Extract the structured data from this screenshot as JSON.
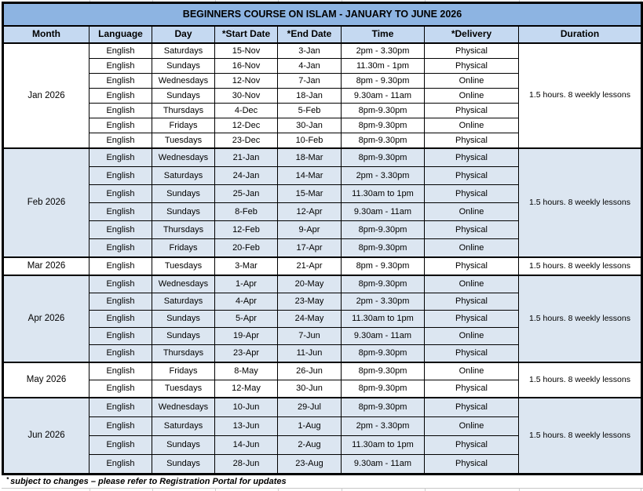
{
  "title": "BEGINNERS COURSE ON ISLAM - JANUARY TO JUNE 2026",
  "columns": [
    "Month",
    "Language",
    "Day",
    "*Start Date",
    "*End Date",
    "Time",
    "*Delivery",
    "Duration"
  ],
  "footnote_marker": "*",
  "footnote": "subject to changes – please refer to Registration Portal for updates",
  "colors": {
    "title_bg": "#8DB4E2",
    "header_bg": "#C5D9F1",
    "band_bg": "#DCE6F1",
    "border": "#000000"
  },
  "sections": [
    {
      "month": "Jan 2026",
      "duration": "1.5 hours. 8 weekly lessons",
      "shaded": false,
      "rows": [
        {
          "language": "English",
          "day": "Saturdays",
          "start": "15-Nov",
          "end": "3-Jan",
          "time": "2pm - 3.30pm",
          "delivery": "Physical"
        },
        {
          "language": "English",
          "day": "Sundays",
          "start": "16-Nov",
          "end": "4-Jan",
          "time": "11.30m - 1pm",
          "delivery": "Physical"
        },
        {
          "language": "English",
          "day": "Wednesdays",
          "start": "12-Nov",
          "end": "7-Jan",
          "time": "8pm - 9.30pm",
          "delivery": "Online"
        },
        {
          "language": "English",
          "day": "Sundays",
          "start": "30-Nov",
          "end": "18-Jan",
          "time": "9.30am - 11am",
          "delivery": "Online"
        },
        {
          "language": "English",
          "day": "Thursdays",
          "start": "4-Dec",
          "end": "5-Feb",
          "time": "8pm-9.30pm",
          "delivery": "Physical"
        },
        {
          "language": "English",
          "day": "Fridays",
          "start": "12-Dec",
          "end": "30-Jan",
          "time": "8pm-9.30pm",
          "delivery": "Online"
        },
        {
          "language": "English",
          "day": "Tuesdays",
          "start": "23-Dec",
          "end": "10-Feb",
          "time": "8pm-9.30pm",
          "delivery": "Physical"
        }
      ]
    },
    {
      "month": "Feb 2026",
      "duration": "1.5 hours. 8 weekly lessons",
      "shaded": true,
      "rows": [
        {
          "language": "English",
          "day": "Wednesdays",
          "start": "21-Jan",
          "end": "18-Mar",
          "time": "8pm-9.30pm",
          "delivery": "Physical"
        },
        {
          "language": "English",
          "day": "Saturdays",
          "start": "24-Jan",
          "end": "14-Mar",
          "time": "2pm - 3.30pm",
          "delivery": "Physical"
        },
        {
          "language": "English",
          "day": "Sundays",
          "start": "25-Jan",
          "end": "15-Mar",
          "time": "11.30am to 1pm",
          "delivery": "Physical"
        },
        {
          "language": "English",
          "day": "Sundays",
          "start": "8-Feb",
          "end": "12-Apr",
          "time": "9.30am - 11am",
          "delivery": "Online"
        },
        {
          "language": "English",
          "day": "Thursdays",
          "start": "12-Feb",
          "end": "9-Apr",
          "time": "8pm-9.30pm",
          "delivery": "Physical"
        },
        {
          "language": "English",
          "day": "Fridays",
          "start": "20-Feb",
          "end": "17-Apr",
          "time": "8pm-9.30pm",
          "delivery": "Online"
        }
      ]
    },
    {
      "month": "Mar 2026",
      "duration": "1.5 hours. 8 weekly lessons",
      "shaded": false,
      "rows": [
        {
          "language": "English",
          "day": "Tuesdays",
          "start": "3-Mar",
          "end": "21-Apr",
          "time": "8pm - 9.30pm",
          "delivery": "Physical"
        }
      ]
    },
    {
      "month": "Apr 2026",
      "duration": "1.5 hours. 8 weekly lessons",
      "shaded": true,
      "rows": [
        {
          "language": "English",
          "day": "Wednesdays",
          "start": "1-Apr",
          "end": "20-May",
          "time": "8pm-9.30pm",
          "delivery": "Online"
        },
        {
          "language": "English",
          "day": "Saturdays",
          "start": "4-Apr",
          "end": "23-May",
          "time": "2pm - 3.30pm",
          "delivery": "Physical"
        },
        {
          "language": "English",
          "day": "Sundays",
          "start": "5-Apr",
          "end": "24-May",
          "time": "11.30am to 1pm",
          "delivery": "Physical"
        },
        {
          "language": "English",
          "day": "Sundays",
          "start": "19-Apr",
          "end": "7-Jun",
          "time": "9.30am - 11am",
          "delivery": "Online"
        },
        {
          "language": "English",
          "day": "Thursdays",
          "start": "23-Apr",
          "end": "11-Jun",
          "time": "8pm-9.30pm",
          "delivery": "Physical"
        }
      ]
    },
    {
      "month": "May 2026",
      "duration": "1.5 hours. 8 weekly lessons",
      "shaded": false,
      "rows": [
        {
          "language": "English",
          "day": "Fridays",
          "start": "8-May",
          "end": "26-Jun",
          "time": "8pm-9.30pm",
          "delivery": "Online"
        },
        {
          "language": "English",
          "day": "Tuesdays",
          "start": "12-May",
          "end": "30-Jun",
          "time": "8pm-9.30pm",
          "delivery": "Physical"
        }
      ]
    },
    {
      "month": "Jun 2026",
      "duration": "1.5 hours. 8 weekly lessons",
      "shaded": true,
      "rows": [
        {
          "language": "English",
          "day": "Wednesdays",
          "start": "10-Jun",
          "end": "29-Jul",
          "time": "8pm-9.30pm",
          "delivery": "Physical"
        },
        {
          "language": "English",
          "day": "Saturdays",
          "start": "13-Jun",
          "end": "1-Aug",
          "time": "2pm - 3.30pm",
          "delivery": "Online"
        },
        {
          "language": "English",
          "day": "Sundays",
          "start": "14-Jun",
          "end": "2-Aug",
          "time": "11.30am to 1pm",
          "delivery": "Physical"
        },
        {
          "language": "English",
          "day": "Sundays",
          "start": "28-Jun",
          "end": "23-Aug",
          "time": "9.30am - 11am",
          "delivery": "Physical"
        }
      ]
    }
  ]
}
